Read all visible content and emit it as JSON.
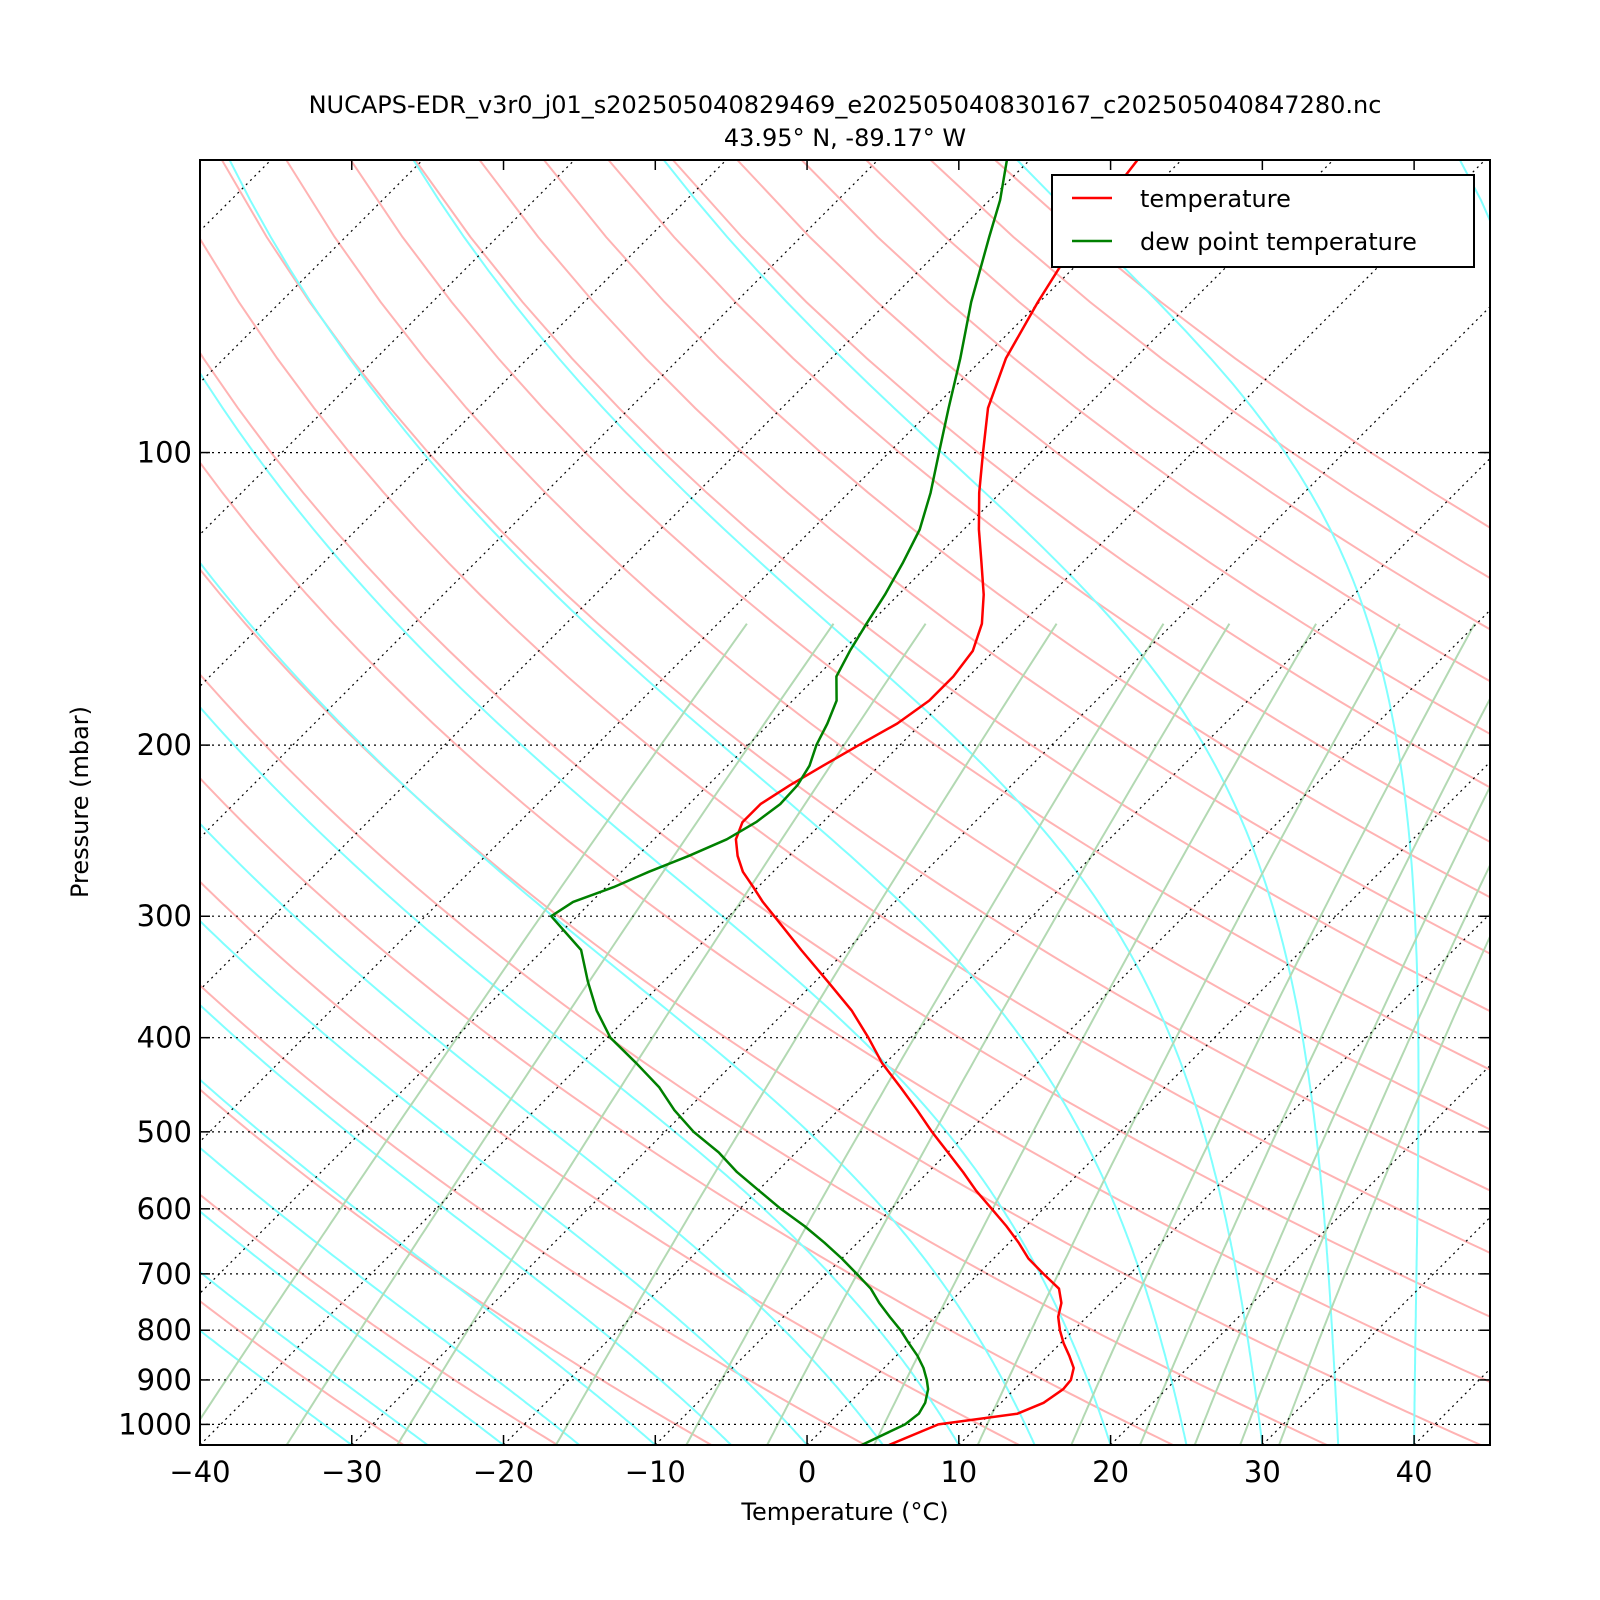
{
  "chart_data": {
    "type": "line",
    "title": "NUCAPS-EDR_v3r0_j01_s202505040829469_e202505040830167_c202505040847280.nc",
    "subtitle": "43.95° N, -89.17° W",
    "xlabel": "Temperature (°C)",
    "ylabel": "Pressure (mbar)",
    "xlim": [
      -40,
      45
    ],
    "ylim": [
      1050,
      50
    ],
    "x_scale": "skew-T (45° skew)",
    "y_scale": "log",
    "x_ticks": [
      -40,
      -30,
      -20,
      -10,
      0,
      10,
      20,
      30,
      40
    ],
    "x_tick_labels": [
      "−40",
      "−30",
      "−20",
      "−10",
      "0",
      "10",
      "20",
      "30",
      "40"
    ],
    "y_ticks": [
      100,
      200,
      300,
      400,
      500,
      600,
      700,
      800,
      900,
      1000
    ],
    "y_tick_labels": [
      "100",
      "200",
      "300",
      "400",
      "500",
      "600",
      "700",
      "800",
      "900",
      "1000"
    ],
    "grid": "isobars and skewed isotherms (dotted)",
    "legend_position": "top-right",
    "background_lines": {
      "dry_adiabats_color": "#ffb3b3",
      "moist_adiabats_color": "#80ffff",
      "mixing_ratio_color": "#b3d9b3"
    },
    "series": [
      {
        "name": "temperature",
        "color": "#ff0000",
        "pressure": [
          1050,
          1000,
          975,
          950,
          920,
          900,
          875,
          850,
          825,
          800,
          775,
          750,
          725,
          700,
          675,
          650,
          625,
          600,
          575,
          550,
          525,
          500,
          475,
          450,
          425,
          400,
          375,
          350,
          325,
          300,
          290,
          280,
          270,
          260,
          250,
          240,
          230,
          220,
          210,
          200,
          190,
          180,
          170,
          160,
          150,
          140,
          130,
          120,
          110,
          100,
          90,
          80,
          70,
          60,
          55,
          50
        ],
        "values": [
          5.4,
          7.3,
          11.8,
          12.8,
          13.2,
          13.1,
          12.5,
          11.4,
          10.2,
          9.1,
          8.1,
          7.4,
          6.3,
          4.3,
          2.3,
          0.6,
          -1.3,
          -3.4,
          -5.6,
          -7.7,
          -10.0,
          -12.4,
          -14.8,
          -17.4,
          -20.2,
          -22.8,
          -25.7,
          -29.2,
          -33.0,
          -37.0,
          -38.7,
          -40.3,
          -42.0,
          -43.4,
          -44.6,
          -45.3,
          -45.3,
          -44.6,
          -43.7,
          -42.7,
          -41.6,
          -41.0,
          -41.0,
          -41.4,
          -42.6,
          -44.4,
          -46.6,
          -49.0,
          -51.4,
          -53.8,
          -56.4,
          -58.5,
          -60.1,
          -61.7,
          -62.3,
          -62.9
        ]
      },
      {
        "name": "dew point temperature",
        "color": "#008000",
        "pressure": [
          1050,
          1000,
          975,
          950,
          920,
          900,
          875,
          850,
          825,
          800,
          775,
          750,
          725,
          700,
          675,
          650,
          625,
          600,
          575,
          550,
          525,
          500,
          475,
          450,
          425,
          400,
          375,
          350,
          325,
          300,
          290,
          280,
          270,
          260,
          250,
          240,
          230,
          220,
          210,
          200,
          190,
          180,
          170,
          160,
          150,
          140,
          130,
          120,
          110,
          100,
          90,
          80,
          70,
          60,
          55,
          50
        ],
        "values": [
          3.6,
          5.1,
          5.3,
          5.0,
          4.3,
          3.6,
          2.6,
          1.4,
          0.0,
          -1.4,
          -3.0,
          -4.6,
          -6.1,
          -8.0,
          -10.0,
          -12.2,
          -14.6,
          -17.3,
          -19.9,
          -22.6,
          -25.1,
          -28.1,
          -30.8,
          -33.3,
          -36.4,
          -39.8,
          -42.5,
          -45.0,
          -47.5,
          -51.7,
          -51.2,
          -49.5,
          -48.2,
          -46.6,
          -45.2,
          -44.4,
          -44.0,
          -44.1,
          -44.6,
          -45.5,
          -46.2,
          -47.1,
          -48.7,
          -49.5,
          -50.2,
          -50.9,
          -51.8,
          -52.9,
          -54.6,
          -56.7,
          -59.0,
          -61.5,
          -64.5,
          -67.6,
          -69.3,
          -71.5
        ]
      }
    ]
  }
}
